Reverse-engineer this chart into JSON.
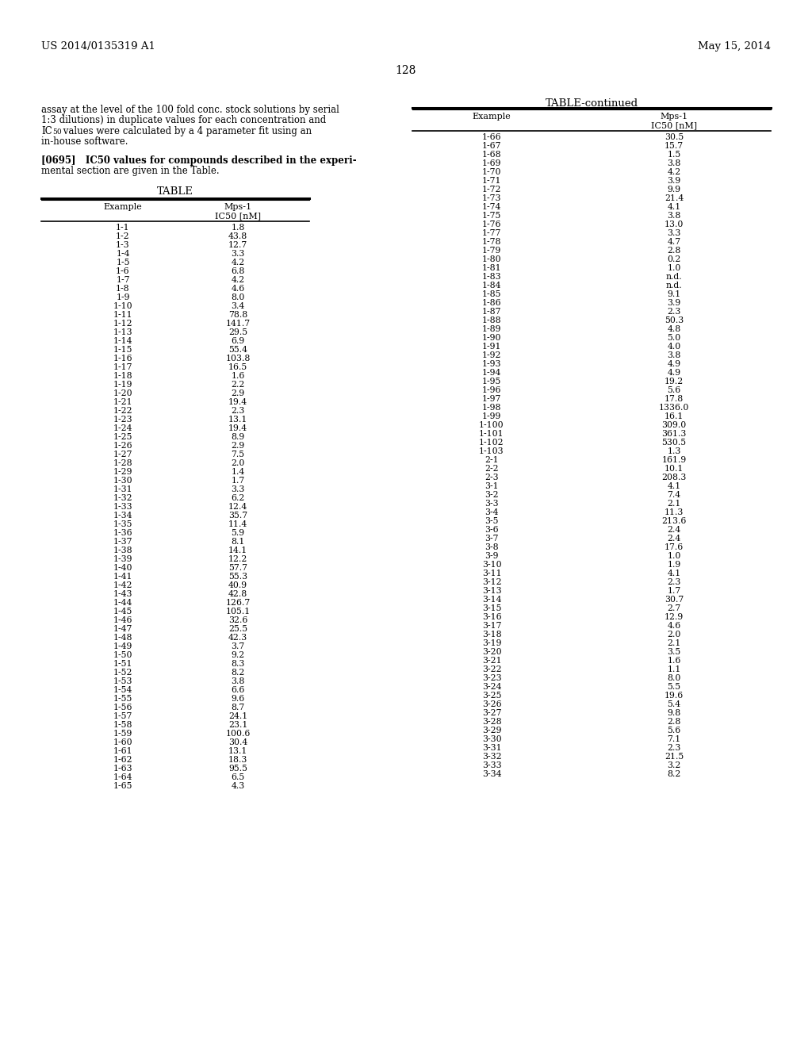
{
  "header_left": "US 2014/0135319 A1",
  "header_right": "May 15, 2014",
  "page_number": "128",
  "paragraph_lines": [
    "assay at the level of the 100 fold conc. stock solutions by serial",
    "1:3 dilutions) in duplicate values for each concentration and",
    "IC50 values were calculated by a 4 parameter fit using an",
    "in-house software."
  ],
  "ic50_line_index": 2,
  "bold_line": "[0695]   IC50 values for compounds described in the experi-",
  "normal_line": "mental section are given in the Table.",
  "table_title": "TABLE",
  "table_continued_title": "TABLE-continued",
  "left_table_data": [
    [
      "1-1",
      "1.8"
    ],
    [
      "1-2",
      "43.8"
    ],
    [
      "1-3",
      "12.7"
    ],
    [
      "1-4",
      "3.3"
    ],
    [
      "1-5",
      "4.2"
    ],
    [
      "1-6",
      "6.8"
    ],
    [
      "1-7",
      "4.2"
    ],
    [
      "1-8",
      "4.6"
    ],
    [
      "1-9",
      "8.0"
    ],
    [
      "1-10",
      "3.4"
    ],
    [
      "1-11",
      "78.8"
    ],
    [
      "1-12",
      "141.7"
    ],
    [
      "1-13",
      "29.5"
    ],
    [
      "1-14",
      "6.9"
    ],
    [
      "1-15",
      "55.4"
    ],
    [
      "1-16",
      "103.8"
    ],
    [
      "1-17",
      "16.5"
    ],
    [
      "1-18",
      "1.6"
    ],
    [
      "1-19",
      "2.2"
    ],
    [
      "1-20",
      "2.9"
    ],
    [
      "1-21",
      "19.4"
    ],
    [
      "1-22",
      "2.3"
    ],
    [
      "1-23",
      "13.1"
    ],
    [
      "1-24",
      "19.4"
    ],
    [
      "1-25",
      "8.9"
    ],
    [
      "1-26",
      "2.9"
    ],
    [
      "1-27",
      "7.5"
    ],
    [
      "1-28",
      "2.0"
    ],
    [
      "1-29",
      "1.4"
    ],
    [
      "1-30",
      "1.7"
    ],
    [
      "1-31",
      "3.3"
    ],
    [
      "1-32",
      "6.2"
    ],
    [
      "1-33",
      "12.4"
    ],
    [
      "1-34",
      "35.7"
    ],
    [
      "1-35",
      "11.4"
    ],
    [
      "1-36",
      "5.9"
    ],
    [
      "1-37",
      "8.1"
    ],
    [
      "1-38",
      "14.1"
    ],
    [
      "1-39",
      "12.2"
    ],
    [
      "1-40",
      "57.7"
    ],
    [
      "1-41",
      "55.3"
    ],
    [
      "1-42",
      "40.9"
    ],
    [
      "1-43",
      "42.8"
    ],
    [
      "1-44",
      "126.7"
    ],
    [
      "1-45",
      "105.1"
    ],
    [
      "1-46",
      "32.6"
    ],
    [
      "1-47",
      "25.5"
    ],
    [
      "1-48",
      "42.3"
    ],
    [
      "1-49",
      "3.7"
    ],
    [
      "1-50",
      "9.2"
    ],
    [
      "1-51",
      "8.3"
    ],
    [
      "1-52",
      "8.2"
    ],
    [
      "1-53",
      "3.8"
    ],
    [
      "1-54",
      "6.6"
    ],
    [
      "1-55",
      "9.6"
    ],
    [
      "1-56",
      "8.7"
    ],
    [
      "1-57",
      "24.1"
    ],
    [
      "1-58",
      "23.1"
    ],
    [
      "1-59",
      "100.6"
    ],
    [
      "1-60",
      "30.4"
    ],
    [
      "1-61",
      "13.1"
    ],
    [
      "1-62",
      "18.3"
    ],
    [
      "1-63",
      "95.5"
    ],
    [
      "1-64",
      "6.5"
    ],
    [
      "1-65",
      "4.3"
    ]
  ],
  "right_table_data": [
    [
      "1-66",
      "30.5"
    ],
    [
      "1-67",
      "15.7"
    ],
    [
      "1-68",
      "1.5"
    ],
    [
      "1-69",
      "3.8"
    ],
    [
      "1-70",
      "4.2"
    ],
    [
      "1-71",
      "3.9"
    ],
    [
      "1-72",
      "9.9"
    ],
    [
      "1-73",
      "21.4"
    ],
    [
      "1-74",
      "4.1"
    ],
    [
      "1-75",
      "3.8"
    ],
    [
      "1-76",
      "13.0"
    ],
    [
      "1-77",
      "3.3"
    ],
    [
      "1-78",
      "4.7"
    ],
    [
      "1-79",
      "2.8"
    ],
    [
      "1-80",
      "0.2"
    ],
    [
      "1-81",
      "1.0"
    ],
    [
      "1-83",
      "n.d."
    ],
    [
      "1-84",
      "n.d."
    ],
    [
      "1-85",
      "9.1"
    ],
    [
      "1-86",
      "3.9"
    ],
    [
      "1-87",
      "2.3"
    ],
    [
      "1-88",
      "50.3"
    ],
    [
      "1-89",
      "4.8"
    ],
    [
      "1-90",
      "5.0"
    ],
    [
      "1-91",
      "4.0"
    ],
    [
      "1-92",
      "3.8"
    ],
    [
      "1-93",
      "4.9"
    ],
    [
      "1-94",
      "4.9"
    ],
    [
      "1-95",
      "19.2"
    ],
    [
      "1-96",
      "5.6"
    ],
    [
      "1-97",
      "17.8"
    ],
    [
      "1-98",
      "1336.0"
    ],
    [
      "1-99",
      "16.1"
    ],
    [
      "1-100",
      "309.0"
    ],
    [
      "1-101",
      "361.3"
    ],
    [
      "1-102",
      "530.5"
    ],
    [
      "1-103",
      "1.3"
    ],
    [
      "2-1",
      "161.9"
    ],
    [
      "2-2",
      "10.1"
    ],
    [
      "2-3",
      "208.3"
    ],
    [
      "3-1",
      "4.1"
    ],
    [
      "3-2",
      "7.4"
    ],
    [
      "3-3",
      "2.1"
    ],
    [
      "3-4",
      "11.3"
    ],
    [
      "3-5",
      "213.6"
    ],
    [
      "3-6",
      "2.4"
    ],
    [
      "3-7",
      "2.4"
    ],
    [
      "3-8",
      "17.6"
    ],
    [
      "3-9",
      "1.0"
    ],
    [
      "3-10",
      "1.9"
    ],
    [
      "3-11",
      "4.1"
    ],
    [
      "3-12",
      "2.3"
    ],
    [
      "3-13",
      "1.7"
    ],
    [
      "3-14",
      "30.7"
    ],
    [
      "3-15",
      "2.7"
    ],
    [
      "3-16",
      "12.9"
    ],
    [
      "3-17",
      "4.6"
    ],
    [
      "3-18",
      "2.0"
    ],
    [
      "3-19",
      "2.1"
    ],
    [
      "3-20",
      "3.5"
    ],
    [
      "3-21",
      "1.6"
    ],
    [
      "3-22",
      "1.1"
    ],
    [
      "3-23",
      "8.0"
    ],
    [
      "3-24",
      "5.5"
    ],
    [
      "3-25",
      "19.6"
    ],
    [
      "3-26",
      "5.4"
    ],
    [
      "3-27",
      "9.8"
    ],
    [
      "3-28",
      "2.8"
    ],
    [
      "3-29",
      "5.6"
    ],
    [
      "3-30",
      "7.1"
    ],
    [
      "3-31",
      "2.3"
    ],
    [
      "3-32",
      "21.5"
    ],
    [
      "3-33",
      "3.2"
    ],
    [
      "3-34",
      "8.2"
    ]
  ],
  "background_color": "#ffffff",
  "text_color": "#000000"
}
